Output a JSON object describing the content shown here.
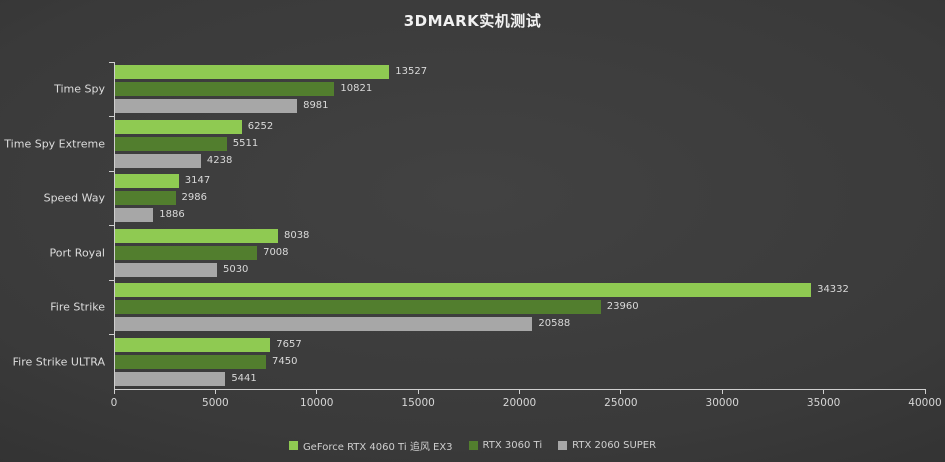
{
  "title": "3DMARK实机测试",
  "chart_data": {
    "type": "bar",
    "orientation": "horizontal",
    "title": "3DMARK实机测试",
    "categories": [
      "Time Spy",
      "Time Spy Extreme",
      "Speed Way",
      "Port Royal",
      "Fire Strike",
      "Fire Strike ULTRA"
    ],
    "series": [
      {
        "name": "GeForce RTX 4060 Ti 追风 EX3",
        "color": "#8fca52",
        "values": [
          13527,
          6252,
          3147,
          8038,
          34332,
          7657
        ]
      },
      {
        "name": "RTX 3060 Ti",
        "color": "#527e2e",
        "values": [
          10821,
          5511,
          2986,
          7008,
          23960,
          7450
        ]
      },
      {
        "name": "RTX 2060 SUPER",
        "color": "#a7a7a7",
        "values": [
          8981,
          4238,
          1886,
          5030,
          20588,
          5441
        ]
      }
    ],
    "xlim": [
      0,
      40000
    ],
    "x_ticks": [
      0,
      5000,
      10000,
      15000,
      20000,
      25000,
      30000,
      35000,
      40000
    ],
    "x_tick_labels": [
      "0",
      "5000",
      "10000",
      "15000",
      "20000",
      "25000",
      "30000",
      "35000",
      "40000"
    ],
    "legend_position": "bottom",
    "grid": false,
    "colors": {
      "background_center": "#424242",
      "background_edge": "#1f1f1f",
      "axis": "#cfcfcf",
      "text": "#dcdcdc"
    }
  }
}
